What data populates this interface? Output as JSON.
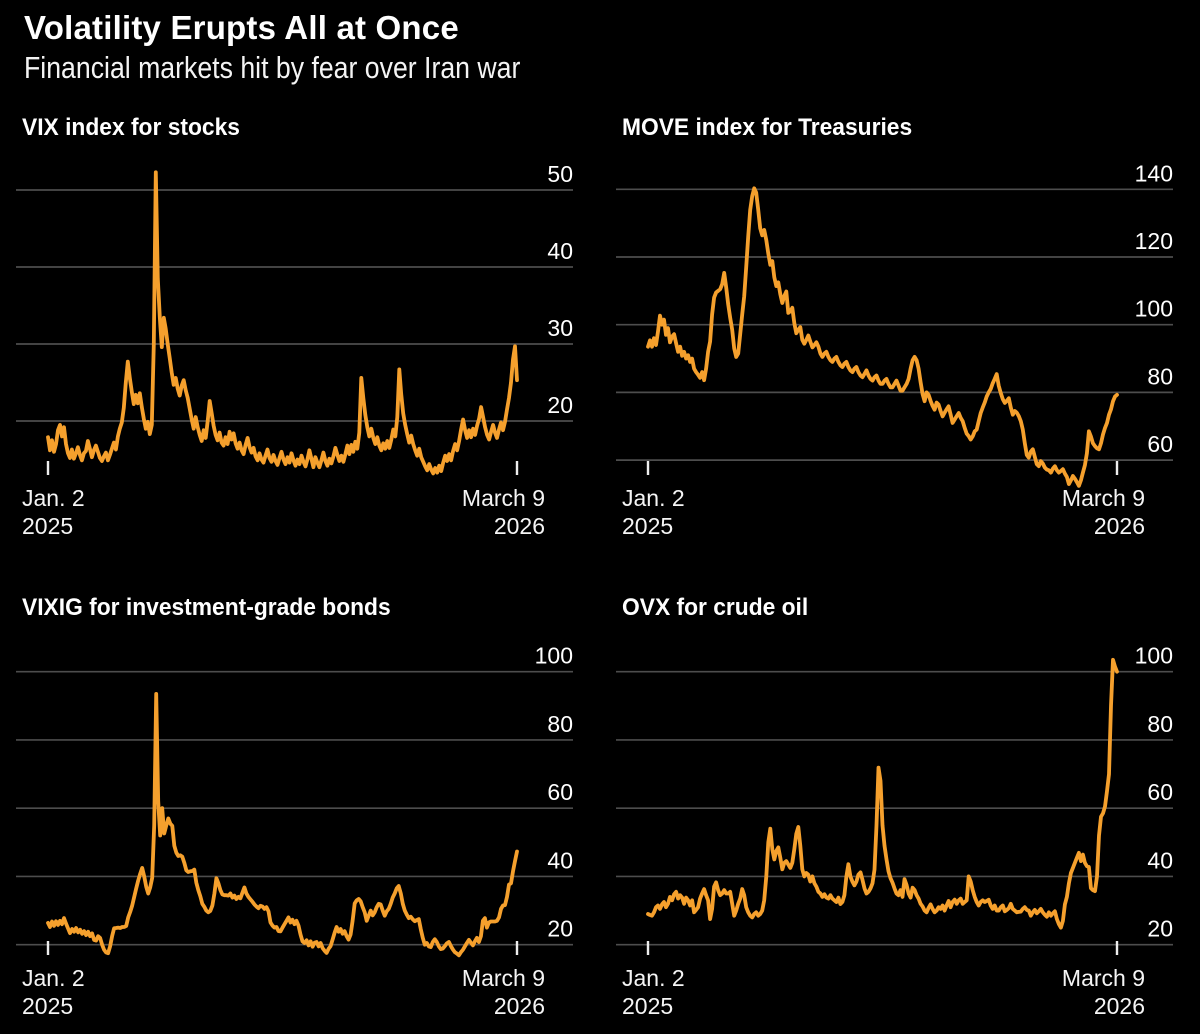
{
  "header": {
    "title": "Volatility Erupts All at Once",
    "subtitle": "Financial markets hit by fear over Iran war"
  },
  "colors": {
    "background": "#000000",
    "line": "#F5A02D",
    "grid": "#4D4D4D",
    "text": "#FFFFFF",
    "tick": "#EDEDED"
  },
  "x_axis": {
    "start_line1": "Jan. 2",
    "start_line2": "2025",
    "end_line1": "March 9",
    "end_line2": "2026"
  },
  "chart_data": [
    {
      "type": "line",
      "title": "VIX index for stocks",
      "x_start": "Jan. 2, 2025",
      "x_end": "March 9, 2026",
      "yticks": [
        50,
        40,
        30,
        20
      ],
      "ylim": [
        12,
        53
      ],
      "grid": true,
      "legend": "none",
      "values": [
        17.9,
        16.2,
        17.5,
        16.0,
        17.0,
        18.8,
        19.5,
        18.0,
        19.2,
        17.0,
        15.8,
        15.2,
        16.3,
        15.1,
        15.8,
        16.6,
        15.6,
        14.9,
        15.8,
        16.1,
        17.4,
        16.4,
        15.3,
        16.2,
        16.8,
        16.0,
        15.2,
        14.8,
        15.4,
        15.9,
        14.9,
        15.6,
        16.4,
        17.2,
        16.3,
        18.0,
        19.0,
        19.8,
        21.7,
        25.0,
        27.7,
        25.6,
        23.8,
        22.2,
        23.4,
        22.3,
        23.6,
        21.8,
        20.3,
        19.0,
        19.9,
        18.3,
        19.5,
        30.0,
        52.3,
        38.5,
        33.5,
        29.6,
        33.4,
        32.0,
        30.0,
        28.2,
        26.3,
        24.7,
        25.6,
        24.2,
        23.3,
        24.6,
        25.3,
        24.0,
        23.0,
        21.6,
        20.2,
        19.0,
        20.5,
        19.2,
        18.2,
        17.4,
        18.8,
        17.8,
        20.0,
        22.6,
        21.0,
        19.4,
        18.2,
        17.5,
        18.5,
        17.2,
        16.8,
        17.9,
        17.0,
        18.6,
        17.6,
        18.4,
        17.1,
        16.4,
        17.2,
        16.2,
        15.7,
        16.9,
        17.8,
        16.6,
        15.9,
        16.5,
        15.4,
        14.9,
        15.8,
        15.0,
        14.6,
        15.5,
        16.3,
        15.2,
        14.7,
        15.6,
        14.8,
        14.3,
        15.2,
        16.0,
        15.0,
        14.4,
        15.3,
        14.6,
        15.8,
        14.9,
        14.2,
        15.0,
        14.4,
        15.5,
        14.7,
        14.1,
        15.0,
        16.2,
        15.1,
        14.0,
        15.3,
        14.6,
        14.0,
        14.9,
        15.9,
        14.8,
        14.2,
        15.1,
        14.5,
        15.4,
        16.5,
        15.6,
        14.8,
        15.5,
        14.7,
        15.7,
        16.8,
        15.7,
        16.9,
        16.0,
        17.3,
        16.4,
        18.5,
        25.6,
        23.0,
        20.8,
        19.2,
        18.0,
        19.0,
        17.8,
        17.0,
        17.9,
        16.8,
        16.2,
        17.1,
        16.4,
        17.4,
        16.5,
        17.6,
        18.9,
        18.0,
        20.5,
        26.7,
        23.5,
        21.0,
        19.5,
        18.3,
        17.2,
        18.1,
        17.0,
        16.2,
        15.5,
        16.4,
        15.3,
        14.7,
        14.1,
        13.6,
        14.4,
        13.7,
        13.2,
        13.9,
        13.3,
        14.2,
        13.5,
        14.6,
        15.5,
        14.8,
        15.7,
        14.9,
        16.1,
        17.0,
        16.2,
        17.4,
        18.9,
        20.2,
        18.8,
        17.8,
        18.8,
        17.9,
        19.0,
        18.2,
        19.4,
        20.3,
        21.8,
        20.5,
        19.2,
        18.2,
        17.6,
        18.6,
        19.5,
        18.5,
        17.8,
        18.9,
        19.8,
        18.8,
        19.9,
        21.5,
        23.0,
        25.0,
        28.0,
        29.7,
        25.3
      ]
    },
    {
      "type": "line",
      "title": "MOVE index for Treasuries",
      "x_start": "Jan. 2, 2025",
      "x_end": "March 9, 2026",
      "yticks": [
        140,
        120,
        100,
        80,
        60
      ],
      "ylim": [
        50,
        142
      ],
      "grid": true,
      "legend": "none",
      "values": [
        93.5,
        95.4,
        93.5,
        96.0,
        94.0,
        98.0,
        102.7,
        100.0,
        101.5,
        97.0,
        99.0,
        94.8,
        96.5,
        97.2,
        94.5,
        92.0,
        93.5,
        90.8,
        92.0,
        90.0,
        91.0,
        89.0,
        90.0,
        87.0,
        86.0,
        85.2,
        84.3,
        86.0,
        83.6,
        87.0,
        92.0,
        95.0,
        103.0,
        108.0,
        109.5,
        110.0,
        110.5,
        112.0,
        115.3,
        111.0,
        106.0,
        102.0,
        98.5,
        93.0,
        90.5,
        91.5,
        97.2,
        103.0,
        108.4,
        117.0,
        126.0,
        133.9,
        138.0,
        140.3,
        139.0,
        134.0,
        128.5,
        126.4,
        128.0,
        125.0,
        121.0,
        117.7,
        118.8,
        114.0,
        111.4,
        112.5,
        109.0,
        106.4,
        108.5,
        109.8,
        103.5,
        104.0,
        105.0,
        100.5,
        97.5,
        98.5,
        99.3,
        95.5,
        94.4,
        95.5,
        96.8,
        95.0,
        93.3,
        94.0,
        94.8,
        93.5,
        91.5,
        90.5,
        91.5,
        92.0,
        90.5,
        89.5,
        89.0,
        90.0,
        90.5,
        89.0,
        88.0,
        87.5,
        88.5,
        89.0,
        87.5,
        86.5,
        86.0,
        87.0,
        87.5,
        86.0,
        85.0,
        84.5,
        85.5,
        86.5,
        85.0,
        84.0,
        83.5,
        84.5,
        85.0,
        83.5,
        82.5,
        82.5,
        83.5,
        84.0,
        82.5,
        81.5,
        81.5,
        82.5,
        83.5,
        82.0,
        80.5,
        80.5,
        81.5,
        82.5,
        84.0,
        87.0,
        89.5,
        90.5,
        89.5,
        87.0,
        83.0,
        79.5,
        77.4,
        80.0,
        79.3,
        77.5,
        76.0,
        74.9,
        77.0,
        76.4,
        74.5,
        72.9,
        74.0,
        75.0,
        75.9,
        73.5,
        71.0,
        72.0,
        73.0,
        73.9,
        72.5,
        71.5,
        69.5,
        67.8,
        67.1,
        66.1,
        67.0,
        68.5,
        69.0,
        71.5,
        73.9,
        75.5,
        77.0,
        78.8,
        80.0,
        81.0,
        82.7,
        84.0,
        85.4,
        82.0,
        79.8,
        78.0,
        76.9,
        77.5,
        78.3,
        75.5,
        73.4,
        74.5,
        74.0,
        73.0,
        71.5,
        69.0,
        65.0,
        61.5,
        60.7,
        62.5,
        63.2,
        61.0,
        58.8,
        58.2,
        59.7,
        59.0,
        57.8,
        57.2,
        57.0,
        56.3,
        57.5,
        58.2,
        57.0,
        56.3,
        56.8,
        57.3,
        56.0,
        55.0,
        52.9,
        54.0,
        55.3,
        54.5,
        53.5,
        52.4,
        54.0,
        56.3,
        58.5,
        62.0,
        68.5,
        67.0,
        65.0,
        64.1,
        63.5,
        63.2,
        65.0,
        67.6,
        69.5,
        71.0,
        73.4,
        75.0,
        77.4,
        78.8,
        79.3
      ]
    },
    {
      "type": "line",
      "title": "VIXIG for investment-grade bonds",
      "x_start": "Jan. 2, 2025",
      "x_end": "March 9, 2026",
      "yticks": [
        100,
        80,
        60,
        40,
        20
      ],
      "ylim": [
        15,
        95
      ],
      "grid": true,
      "legend": "none",
      "values": [
        26.4,
        25.2,
        26.8,
        25.5,
        26.9,
        25.8,
        27.0,
        26.0,
        27.8,
        26.2,
        24.8,
        23.4,
        24.6,
        23.8,
        24.9,
        23.6,
        24.4,
        23.2,
        24.0,
        22.8,
        23.8,
        22.5,
        23.3,
        21.4,
        21.2,
        22.5,
        22.0,
        20.0,
        18.5,
        17.7,
        17.5,
        19.5,
        22.5,
        24.8,
        24.9,
        25.0,
        24.9,
        25.2,
        25.2,
        25.5,
        28.0,
        29.6,
        31.5,
        34.0,
        36.5,
        38.8,
        40.8,
        42.5,
        40.0,
        37.0,
        35.0,
        36.8,
        39.6,
        55.0,
        93.5,
        62.0,
        52.0,
        60.0,
        52.6,
        55.0,
        57.0,
        55.5,
        54.8,
        49.0,
        47.0,
        46.0,
        46.2,
        45.8,
        44.0,
        41.8,
        41.3,
        41.5,
        41.6,
        42.0,
        38.2,
        36.0,
        34.2,
        32.0,
        31.1,
        30.0,
        29.5,
        29.9,
        31.5,
        35.0,
        39.5,
        38.0,
        36.0,
        34.7,
        34.5,
        34.5,
        34.4,
        35.0,
        33.8,
        34.4,
        33.4,
        34.0,
        33.6,
        35.2,
        36.8,
        35.0,
        34.0,
        33.3,
        32.6,
        31.8,
        31.2,
        30.7,
        31.4,
        31.2,
        30.5,
        31.0,
        29.8,
        26.5,
        25.6,
        25.0,
        25.2,
        24.0,
        23.9,
        25.0,
        26.0,
        27.0,
        28.0,
        26.5,
        27.3,
        26.0,
        27.0,
        25.6,
        23.0,
        21.0,
        20.5,
        21.3,
        19.8,
        21.0,
        19.4,
        20.6,
        20.8,
        19.5,
        20.5,
        19.0,
        18.2,
        17.6,
        18.8,
        19.6,
        21.5,
        23.5,
        25.2,
        23.8,
        24.6,
        23.2,
        24.0,
        22.5,
        21.5,
        23.0,
        27.0,
        32.1,
        33.0,
        33.4,
        32.7,
        31.0,
        29.5,
        27.0,
        28.5,
        30.0,
        28.6,
        29.5,
        31.0,
        32.0,
        31.8,
        30.0,
        28.5,
        29.8,
        30.5,
        32.0,
        33.8,
        35.0,
        36.5,
        37.2,
        35.0,
        32.0,
        30.0,
        28.8,
        27.8,
        28.2,
        27.4,
        26.9,
        27.2,
        27.5,
        24.5,
        22.0,
        20.0,
        20.5,
        19.5,
        19.3,
        20.8,
        21.6,
        20.8,
        19.5,
        18.7,
        18.9,
        19.6,
        20.4,
        20.8,
        19.6,
        18.6,
        17.8,
        17.4,
        16.9,
        17.8,
        18.5,
        19.5,
        20.5,
        21.4,
        20.6,
        19.8,
        21.0,
        22.0,
        20.8,
        22.5,
        27.0,
        27.8,
        25.0,
        26.5,
        26.8,
        26.8,
        26.8,
        27.0,
        28.0,
        30.5,
        31.5,
        31.6,
        34.0,
        37.6,
        38.0,
        41.5,
        44.5,
        47.3
      ]
    },
    {
      "type": "line",
      "title": "OVX for crude oil",
      "x_start": "Jan. 2, 2025",
      "x_end": "March 9, 2026",
      "yticks": [
        100,
        80,
        60,
        40,
        20
      ],
      "ylim": [
        20,
        104
      ],
      "grid": true,
      "legend": "none",
      "values": [
        29.0,
        28.7,
        28.5,
        29.5,
        31.0,
        31.5,
        30.5,
        31.8,
        32.5,
        31.0,
        32.0,
        34.0,
        33.0,
        34.8,
        35.5,
        33.5,
        34.5,
        33.8,
        32.0,
        33.8,
        33.0,
        31.5,
        33.0,
        29.5,
        30.2,
        31.0,
        33.5,
        35.0,
        36.3,
        34.5,
        33.0,
        27.5,
        30.5,
        37.0,
        38.3,
        36.0,
        34.5,
        35.0,
        36.0,
        35.0,
        35.0,
        35.5,
        32.0,
        28.5,
        30.0,
        32.0,
        33.5,
        36.3,
        34.5,
        31.0,
        29.5,
        28.5,
        28.0,
        29.0,
        29.5,
        28.5,
        29.0,
        30.0,
        33.0,
        40.0,
        50.0,
        54.0,
        48.0,
        45.0,
        47.5,
        48.5,
        45.5,
        42.1,
        44.0,
        44.5,
        43.5,
        42.5,
        44.0,
        48.0,
        52.5,
        54.5,
        49.0,
        42.1,
        40.0,
        41.0,
        40.5,
        38.5,
        40.0,
        38.0,
        37.0,
        35.5,
        35.0,
        34.0,
        34.8,
        33.8,
        33.5,
        34.5,
        33.5,
        33.0,
        32.5,
        33.8,
        31.9,
        32.5,
        34.5,
        40.0,
        43.6,
        40.0,
        38.5,
        37.4,
        38.5,
        40.5,
        41.2,
        39.0,
        36.5,
        35.0,
        35.5,
        36.5,
        38.0,
        42.0,
        55.0,
        71.9,
        68.0,
        55.0,
        49.0,
        45.0,
        41.5,
        39.5,
        38.2,
        36.5,
        35.0,
        34.5,
        36.0,
        34.0,
        39.2,
        37.5,
        35.0,
        33.8,
        36.7,
        36.0,
        34.5,
        33.5,
        32.0,
        31.2,
        30.0,
        29.5,
        30.8,
        31.8,
        30.5,
        29.5,
        30.0,
        31.0,
        30.5,
        31.5,
        30.0,
        31.5,
        32.8,
        31.0,
        32.5,
        33.2,
        32.0,
        33.0,
        33.5,
        32.0,
        32.5,
        33.0,
        40.0,
        38.5,
        36.0,
        34.0,
        32.5,
        31.5,
        32.5,
        33.0,
        32.5,
        32.8,
        33.2,
        31.5,
        30.5,
        31.5,
        30.0,
        30.0,
        31.0,
        31.5,
        29.8,
        30.2,
        30.7,
        32.0,
        30.5,
        30.0,
        29.5,
        29.6,
        29.7,
        30.5,
        31.0,
        30.2,
        30.0,
        28.5,
        29.5,
        30.2,
        29.2,
        29.8,
        30.5,
        29.5,
        28.8,
        28.2,
        29.5,
        28.5,
        29.2,
        29.8,
        27.5,
        26.0,
        25.0,
        27.0,
        31.8,
        34.0,
        38.0,
        41.0,
        42.5,
        44.0,
        45.5,
        46.9,
        44.5,
        46.4,
        44.0,
        43.0,
        42.8,
        36.6,
        36.0,
        35.7,
        40.0,
        52.0,
        57.5,
        58.5,
        60.5,
        65.0,
        70.0,
        90.0,
        103.5,
        101.5,
        100.0
      ]
    }
  ]
}
